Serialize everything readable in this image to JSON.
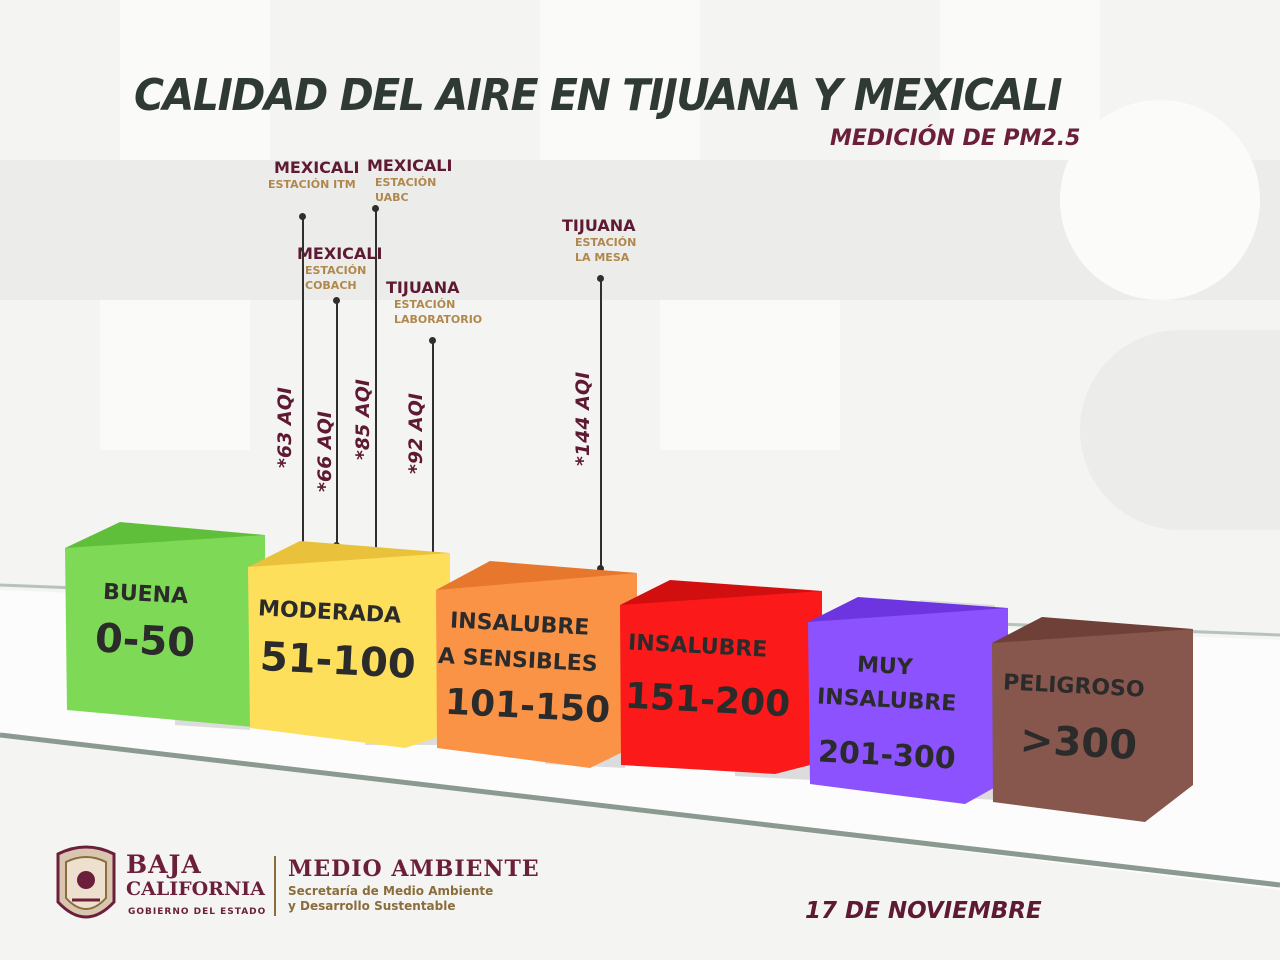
{
  "title": "CALIDAD DEL AIRE EN TIJUANA Y MEXICALI",
  "subtitle": "MEDICIÓN DE  PM2.5",
  "stations": [
    {
      "city": "MEXICALI",
      "station_lines": [
        "ESTACIÓN ITM"
      ],
      "aqi": "*63 AQI"
    },
    {
      "city": "MEXICALI",
      "station_lines": [
        "ESTACIÓN",
        "COBACH"
      ],
      "aqi": "*66 AQI"
    },
    {
      "city": "MEXICALI",
      "station_lines": [
        "ESTACIÓN",
        "UABC"
      ],
      "aqi": "*85 AQI"
    },
    {
      "city": "TIJUANA",
      "station_lines": [
        "ESTACIÓN",
        "LABORATORIO"
      ],
      "aqi": "*92 AQI"
    },
    {
      "city": "TIJUANA",
      "station_lines": [
        "ESTACIÓN",
        "LA MESA"
      ],
      "aqi": "*144 AQI"
    }
  ],
  "categories": [
    {
      "name": "BUENA",
      "range": "0-50",
      "color": "#7ed957"
    },
    {
      "name": "MODERADA",
      "range": "51-100",
      "color": "#fddf5c"
    },
    {
      "name": "INSALUBRE A SENSIBLES",
      "name_lines": [
        "INSALUBRE",
        "A SENSIBLES"
      ],
      "range": "101-150",
      "color": "#fb9347"
    },
    {
      "name": "INSALUBRE",
      "range": "151-200",
      "color": "#fb1a19"
    },
    {
      "name": "MUY INSALUBRE",
      "name_lines": [
        "MUY",
        "INSALUBRE"
      ],
      "range": "201-300",
      "color": "#8c52fe"
    },
    {
      "name": "PELIGROSO",
      "range": ">300",
      "color": "#87564c"
    }
  ],
  "footer": {
    "brand_line1": "BAJA",
    "brand_line2": "CALIFORNIA",
    "brand_line3": "GOBIERNO DEL ESTADO",
    "dept": "MEDIO AMBIENTE",
    "dept_sub1": "Secretaría de Medio Ambiente",
    "dept_sub2": "y Desarrollo Sustentable",
    "date": "17 DE NOVIEMBRE"
  }
}
